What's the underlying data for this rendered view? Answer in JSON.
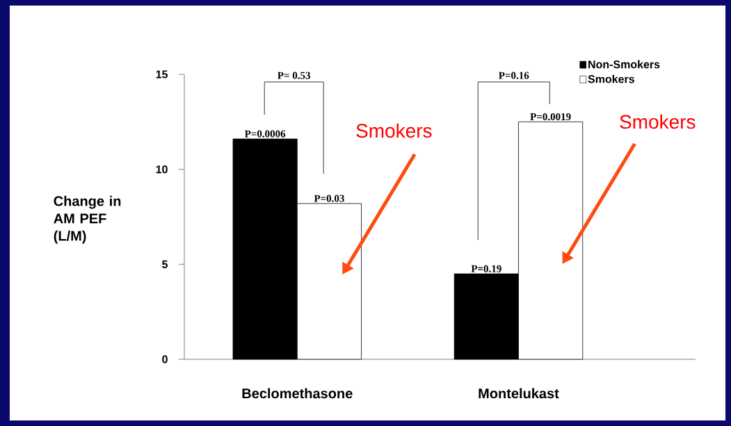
{
  "chart_data": {
    "type": "bar",
    "ylabel": "Change in AM PEF (L/M)",
    "categories": [
      "Beclomethasone",
      "Montelukast"
    ],
    "series": [
      {
        "name": "Non-Smokers",
        "color": "#000000",
        "values": [
          11.6,
          4.5
        ]
      },
      {
        "name": "Smokers",
        "color": "#ffffff",
        "values": [
          8.2,
          12.5
        ]
      }
    ],
    "ylim": [
      0,
      15
    ],
    "yticks": [
      0,
      5,
      10,
      15
    ],
    "legend": "top right",
    "annotations": [
      "P= 0.53",
      "P=0.16",
      {
        "text": "P=0.0006",
        "x": "Beclomethasone",
        "y": 11.6
      },
      {
        "text": "P=0.03",
        "x": "Beclomethasone",
        "y": 8.2
      },
      {
        "text": "P=0.19",
        "x": "Montelukast",
        "y": 4.5
      },
      {
        "text": "P=0.0019",
        "x": "Montelukast",
        "y": 12.5
      },
      "Smokers",
      "Smokers"
    ]
  }
}
